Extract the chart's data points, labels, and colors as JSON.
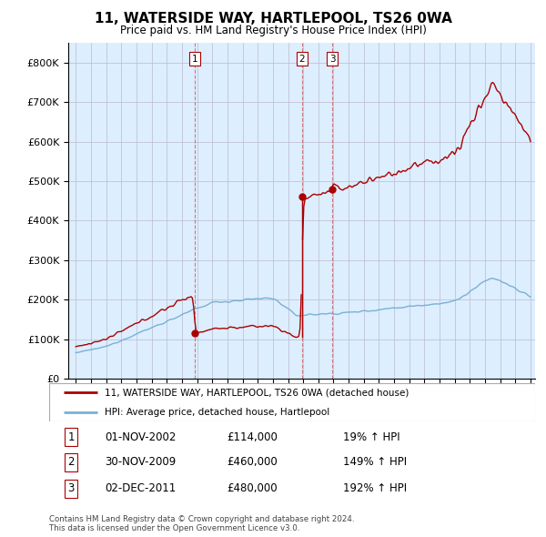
{
  "title": "11, WATERSIDE WAY, HARTLEPOOL, TS26 0WA",
  "subtitle": "Price paid vs. HM Land Registry's House Price Index (HPI)",
  "legend_line1": "11, WATERSIDE WAY, HARTLEPOOL, TS26 0WA (detached house)",
  "legend_line2": "HPI: Average price, detached house, Hartlepool",
  "transactions": [
    {
      "num": 1,
      "date": "01-NOV-2002",
      "price": 114000,
      "pct": "19%",
      "dir": "↑",
      "year_x": 2002.83
    },
    {
      "num": 2,
      "date": "30-NOV-2009",
      "price": 460000,
      "pct": "149%",
      "dir": "↑",
      "year_x": 2009.92
    },
    {
      "num": 3,
      "date": "02-DEC-2011",
      "price": 480000,
      "pct": "192%",
      "dir": "↑",
      "year_x": 2011.92
    }
  ],
  "copyright": "Contains HM Land Registry data © Crown copyright and database right 2024.\nThis data is licensed under the Open Government Licence v3.0.",
  "red_color": "#aa0000",
  "blue_color": "#7ab0d4",
  "bg_color": "#ddeeff",
  "ylim": [
    0,
    850000
  ],
  "yticks": [
    0,
    100000,
    200000,
    300000,
    400000,
    500000,
    600000,
    700000,
    800000
  ],
  "ytick_labels": [
    "£0",
    "£100K",
    "£200K",
    "£300K",
    "£400K",
    "£500K",
    "£600K",
    "£700K",
    "£800K"
  ],
  "xlim": [
    1994.5,
    2025.3
  ],
  "xticks": [
    1995,
    1996,
    1997,
    1998,
    1999,
    2000,
    2001,
    2002,
    2003,
    2004,
    2005,
    2006,
    2007,
    2008,
    2009,
    2010,
    2011,
    2012,
    2013,
    2014,
    2015,
    2016,
    2017,
    2018,
    2019,
    2020,
    2021,
    2022,
    2023,
    2024,
    2025
  ]
}
